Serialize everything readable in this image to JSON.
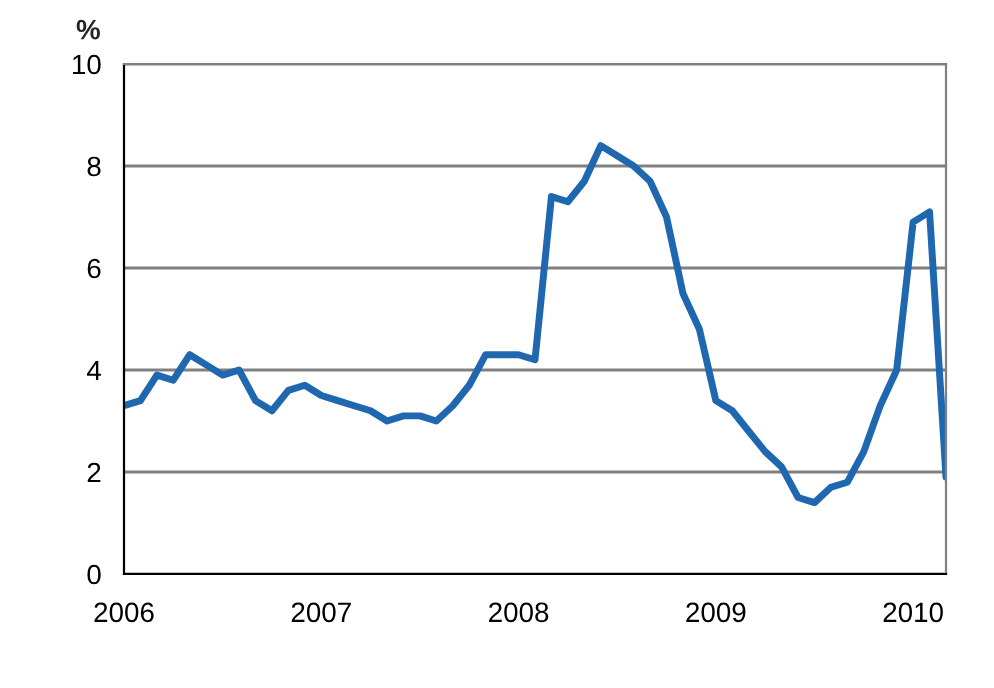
{
  "chart_data": {
    "type": "line",
    "ylabel": "%",
    "categories": [
      "2006",
      null,
      null,
      null,
      null,
      null,
      null,
      null,
      null,
      null,
      null,
      null,
      "2007",
      null,
      null,
      null,
      null,
      null,
      null,
      null,
      null,
      null,
      null,
      null,
      "2008",
      null,
      null,
      null,
      null,
      null,
      null,
      null,
      null,
      null,
      null,
      null,
      "2009",
      null,
      null,
      null,
      null,
      null,
      null,
      null,
      null,
      null,
      null,
      null,
      "2010",
      null,
      null
    ],
    "series": [
      {
        "color": "#1f68b0",
        "values": [
          3.3,
          3.4,
          3.9,
          3.8,
          4.3,
          4.1,
          3.9,
          4.0,
          3.4,
          3.2,
          3.6,
          3.7,
          3.5,
          3.4,
          3.3,
          3.2,
          3.0,
          3.1,
          3.1,
          3.0,
          3.3,
          3.7,
          4.3,
          4.3,
          4.3,
          4.2,
          7.4,
          7.3,
          7.7,
          8.4,
          8.2,
          8.0,
          7.7,
          7.0,
          5.5,
          4.8,
          3.4,
          3.2,
          2.8,
          2.4,
          2.1,
          1.5,
          1.4,
          1.7,
          1.8,
          2.4,
          3.3,
          4.0,
          6.9,
          7.1,
          1.9
        ]
      }
    ],
    "ylim": [
      0,
      10
    ],
    "yticks": [
      0,
      2,
      4,
      6,
      8,
      10
    ],
    "grid": "y",
    "legend": false,
    "marker": "none",
    "line_style": "solid"
  }
}
